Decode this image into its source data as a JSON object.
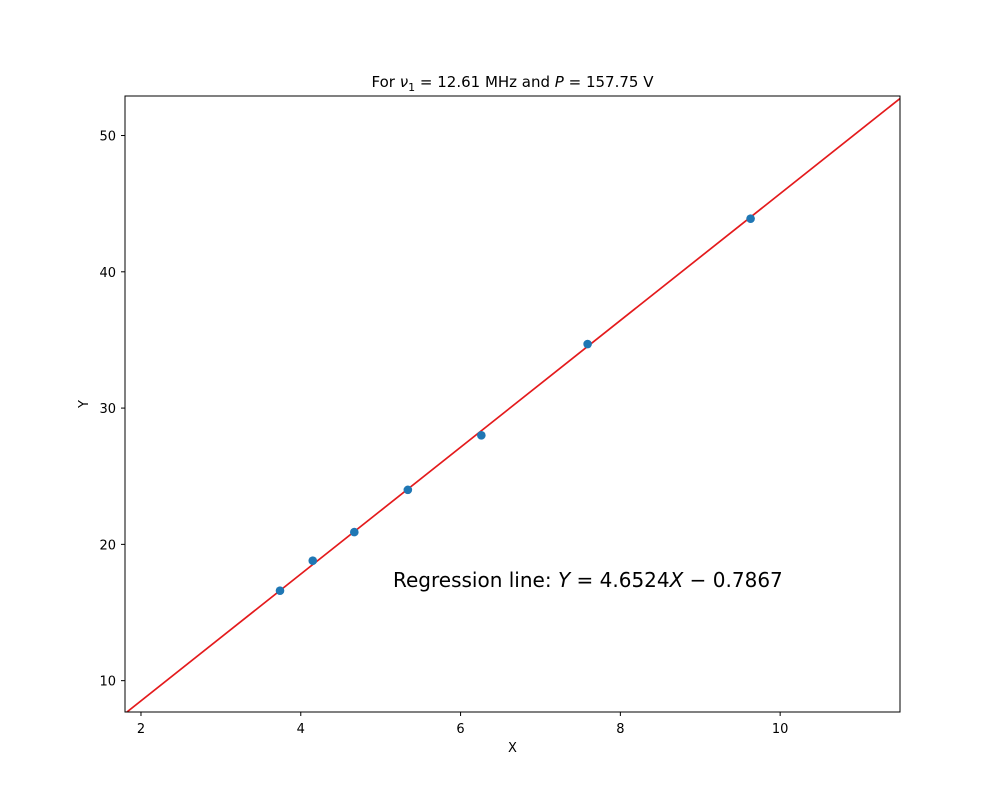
{
  "chart_data": {
    "type": "scatter",
    "title_prefix": "For ",
    "title_nu": "ν",
    "title_sub": "1",
    "title_mid": " = 12.61 MHz and ",
    "title_p": "P",
    "title_suffix": " = 157.75 V",
    "xlabel": "X",
    "ylabel": "Y",
    "xlim": [
      1.8,
      11.5
    ],
    "ylim": [
      7.7,
      52.9
    ],
    "xticks": [
      2,
      4,
      6,
      8,
      10
    ],
    "yticks": [
      10,
      20,
      30,
      40,
      50
    ],
    "points": [
      {
        "x": 3.74,
        "y": 16.6
      },
      {
        "x": 4.15,
        "y": 18.8
      },
      {
        "x": 4.67,
        "y": 20.9
      },
      {
        "x": 5.34,
        "y": 24.0
      },
      {
        "x": 6.26,
        "y": 28.0
      },
      {
        "x": 7.59,
        "y": 34.7
      },
      {
        "x": 9.63,
        "y": 43.9
      }
    ],
    "regression": {
      "slope": 4.6524,
      "intercept": -0.7867
    },
    "annotation": {
      "prefix": "Regression line: ",
      "lhs": "Y",
      "eq": " = 4.6524",
      "var": "X",
      "rest": " − 0.7867"
    },
    "colors": {
      "points": "#1f77b4",
      "line": "#e41a1c",
      "axes": "#000000"
    },
    "grid": false
  }
}
